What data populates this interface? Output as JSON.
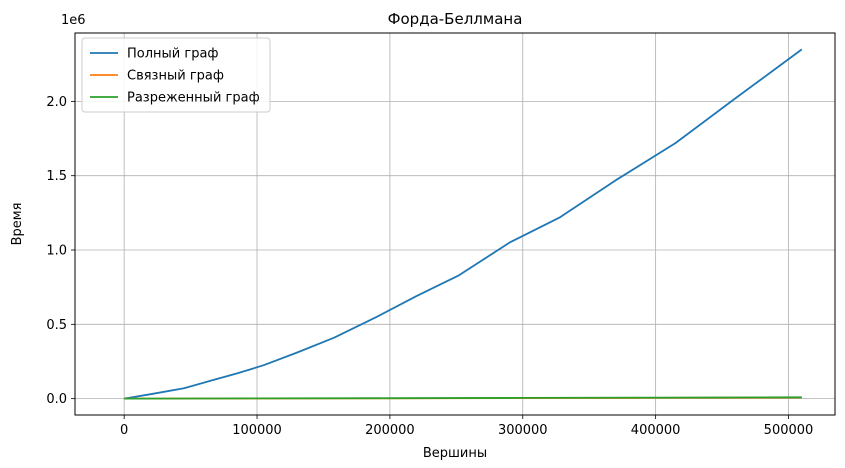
{
  "chart_data": {
    "type": "line",
    "title": "Форда-Беллмана",
    "xlabel": "Вершины",
    "ylabel": "Время",
    "y_offset_label": "1e6",
    "xlim": [
      -37000,
      535000
    ],
    "ylim": [
      -110000,
      2460000
    ],
    "x_ticks": [
      0,
      100000,
      200000,
      300000,
      400000,
      500000
    ],
    "x_tick_labels": [
      "0",
      "100000",
      "200000",
      "300000",
      "400000",
      "500000"
    ],
    "y_ticks": [
      0,
      500000,
      1000000,
      1500000,
      2000000
    ],
    "y_tick_labels": [
      "0.0",
      "0.5",
      "1.0",
      "1.5",
      "2.0"
    ],
    "grid": true,
    "legend_position": "top-left",
    "series": [
      {
        "name": "Полный граф",
        "color": "#1f77b4",
        "x": [
          0,
          20000,
          45000,
          65000,
          85000,
          105000,
          130000,
          158000,
          190000,
          220000,
          252000,
          290000,
          328000,
          370000,
          415000,
          460000,
          510000
        ],
        "y": [
          0,
          30000,
          70000,
          120000,
          170000,
          225000,
          310000,
          410000,
          550000,
          690000,
          830000,
          1050000,
          1220000,
          1470000,
          1720000,
          2020000,
          2350000
        ]
      },
      {
        "name": "Связный граф",
        "color": "#ff7f0e",
        "x": [
          0,
          100000,
          200000,
          300000,
          400000,
          510000
        ],
        "y": [
          0,
          1000,
          2000,
          3500,
          5000,
          7000
        ]
      },
      {
        "name": "Разреженный граф",
        "color": "#2ca02c",
        "x": [
          0,
          100000,
          200000,
          300000,
          400000,
          510000
        ],
        "y": [
          0,
          1500,
          3000,
          5000,
          7000,
          9000
        ]
      }
    ]
  }
}
